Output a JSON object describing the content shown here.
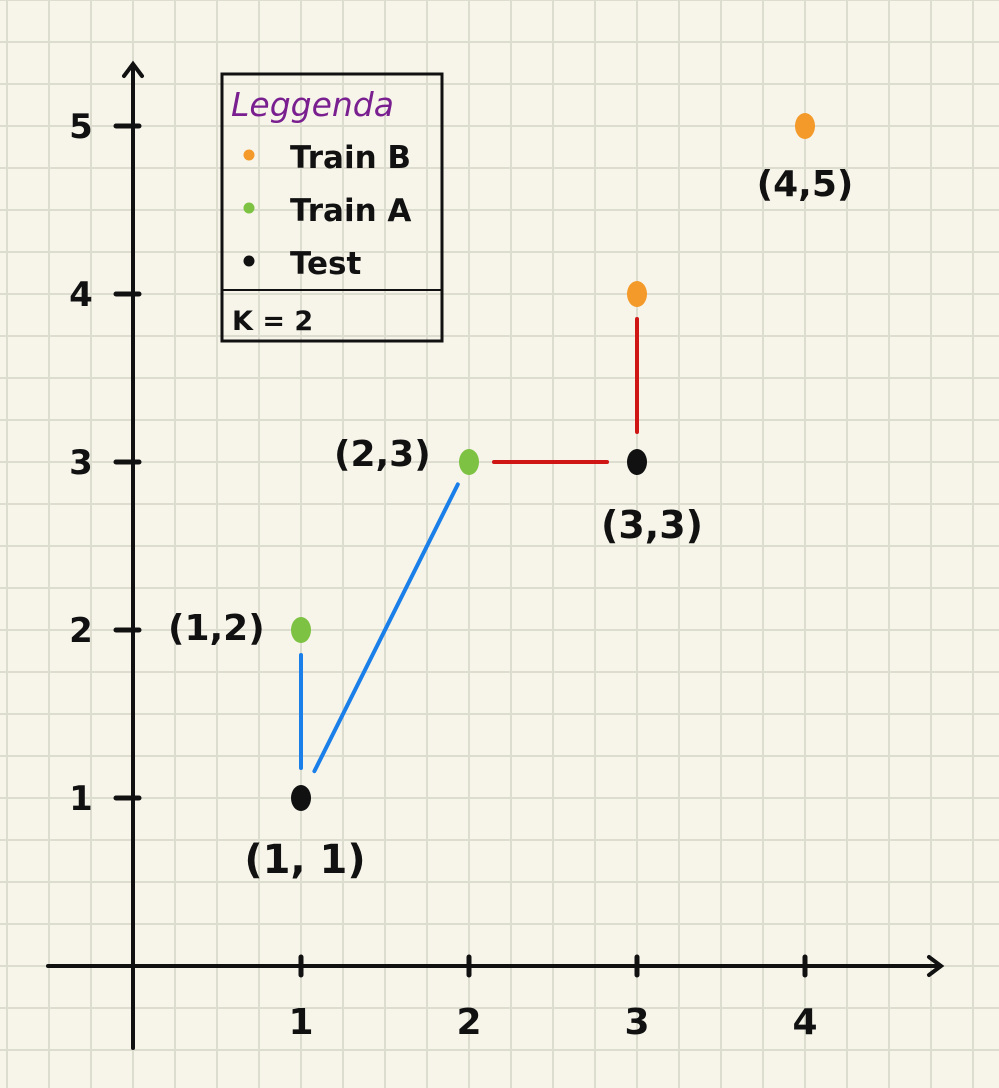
{
  "chart_data": {
    "type": "scatter",
    "xlim": [
      -0.5,
      4.75
    ],
    "ylim": [
      -0.5,
      5.5
    ],
    "x_ticks": [
      "1",
      "2",
      "3",
      "4"
    ],
    "y_ticks": [
      "1",
      "2",
      "3",
      "4",
      "5"
    ],
    "grid": true,
    "legend_position": "top-left",
    "legend": {
      "title": "Leggenda",
      "entries": [
        {
          "label": "Train B",
          "color": "#f39a2b"
        },
        {
          "label": "Train A",
          "color": "#7dc242"
        },
        {
          "label": "Test",
          "color": "#111111"
        }
      ],
      "note": "K = 2"
    },
    "series": [
      {
        "name": "Train B",
        "color": "#f39a2b",
        "points": [
          {
            "x": 3,
            "y": 4,
            "label": ""
          },
          {
            "x": 4,
            "y": 5,
            "label": "(4,5)"
          }
        ]
      },
      {
        "name": "Train A",
        "color": "#7dc242",
        "points": [
          {
            "x": 1,
            "y": 2,
            "label": "(1,2)"
          },
          {
            "x": 2,
            "y": 3,
            "label": "(2,3)"
          }
        ]
      },
      {
        "name": "Test",
        "color": "#111111",
        "points": [
          {
            "x": 1,
            "y": 1,
            "label": "(1, 1)"
          },
          {
            "x": 3,
            "y": 3,
            "label": "(3,3)"
          }
        ]
      }
    ],
    "neighbor_lines": [
      {
        "from": [
          1,
          1
        ],
        "to": [
          1,
          2
        ],
        "color": "#1a7fe8"
      },
      {
        "from": [
          1,
          1
        ],
        "to": [
          2,
          3
        ],
        "color": "#1a7fe8"
      },
      {
        "from": [
          3,
          3
        ],
        "to": [
          2,
          3
        ],
        "color": "#d01515"
      },
      {
        "from": [
          3,
          3
        ],
        "to": [
          3,
          4
        ],
        "color": "#d01515"
      }
    ]
  }
}
